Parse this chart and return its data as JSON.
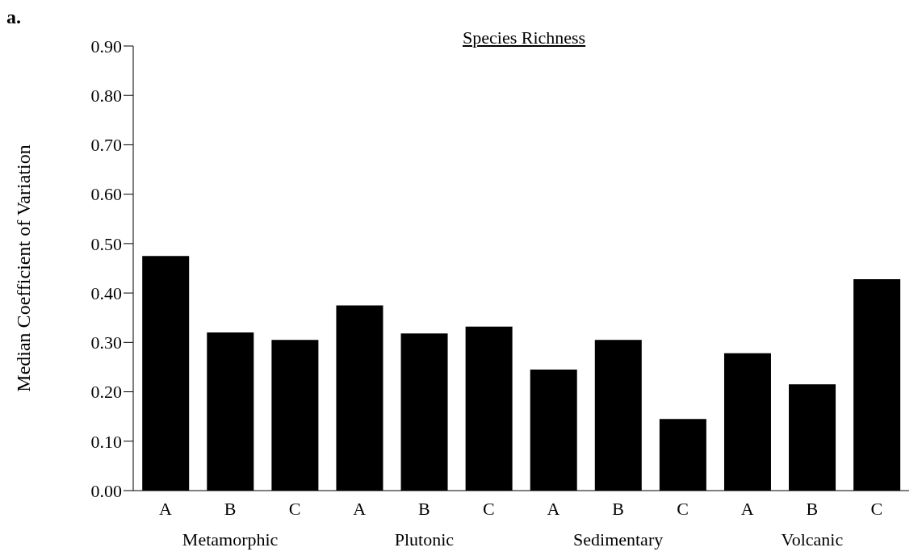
{
  "chart_data": {
    "type": "bar",
    "title": "Species Richness",
    "ylabel": "Median Coefficient of Variation",
    "categories": [
      "A",
      "B",
      "C",
      "A",
      "B",
      "C",
      "A",
      "B",
      "C",
      "A",
      "B",
      "C"
    ],
    "values": [
      0.475,
      0.32,
      0.305,
      0.375,
      0.318,
      0.332,
      0.245,
      0.305,
      0.145,
      0.278,
      0.215,
      0.428
    ],
    "color": "#000000",
    "ylim": [
      0,
      0.9
    ],
    "yticks": [
      {
        "value": 0,
        "label": "0.00"
      },
      {
        "value": 0.1,
        "label": "0.10"
      },
      {
        "value": 0.2,
        "label": "0.20"
      },
      {
        "value": 0.3,
        "label": "0.30"
      },
      {
        "value": 0.4,
        "label": "0.40"
      },
      {
        "value": 0.5,
        "label": "0.50"
      },
      {
        "value": 0.6,
        "label": "0.60"
      },
      {
        "value": 0.7,
        "label": "0.70"
      },
      {
        "value": 0.8,
        "label": "0.80"
      },
      {
        "value": 0.9,
        "label": "0.90"
      }
    ],
    "annotations": [
      "a.",
      "Metamorphic",
      "Plutonic",
      "Sedimentary",
      "Volcanic"
    ],
    "grid": false,
    "legend": false
  }
}
